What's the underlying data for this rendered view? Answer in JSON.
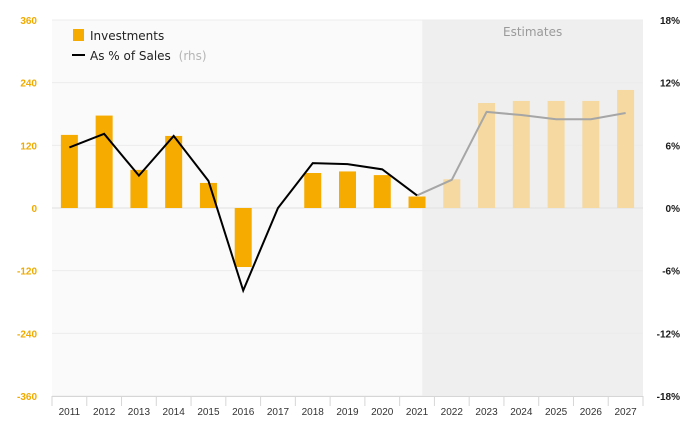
{
  "chart_data": {
    "type": "bar",
    "categories": [
      "2011",
      "2012",
      "2013",
      "2014",
      "2015",
      "2016",
      "2017",
      "2018",
      "2019",
      "2020",
      "2021",
      "2022",
      "2023",
      "2024",
      "2025",
      "2026",
      "2027"
    ],
    "series": [
      {
        "name": "Investments",
        "type": "bar",
        "axis": "left",
        "values": [
          140,
          177,
          73,
          138,
          48,
          -113,
          0,
          67,
          70,
          63,
          22,
          55,
          201,
          205,
          205,
          205,
          226
        ]
      },
      {
        "name": "As % of Sales",
        "name_note": "(rhs)",
        "type": "line",
        "axis": "right",
        "values": [
          5.8,
          7.1,
          3.1,
          6.9,
          2.6,
          -7.9,
          0.0,
          4.3,
          4.2,
          3.7,
          1.2,
          2.7,
          9.2,
          8.9,
          8.5,
          8.5,
          9.1
        ]
      }
    ],
    "estimates_start_index": 11,
    "estimates_label": "Estimates",
    "y_left": {
      "ylim": [
        -360,
        360
      ],
      "ticks": [
        -360,
        -240,
        -120,
        0,
        120,
        240,
        360
      ],
      "tick_labels": [
        "-360",
        "-240",
        "-120",
        "0",
        "120",
        "240",
        "360"
      ]
    },
    "y_right": {
      "ylim": [
        -18,
        18
      ],
      "tick_labels": [
        "-18%",
        "-12%",
        "-6%",
        "0%",
        "6%",
        "12%",
        "18%"
      ]
    },
    "grid": true,
    "legend_position": "top-left",
    "colors": {
      "bar": "#f5ab00",
      "bar_estimate": "#f5d9a0",
      "line": "#000000",
      "line_estimate": "#a6a6a6",
      "estimate_shade": "#efefef",
      "plot_bg": "#fafafa",
      "left_axis_text": "#f0ab00"
    }
  }
}
